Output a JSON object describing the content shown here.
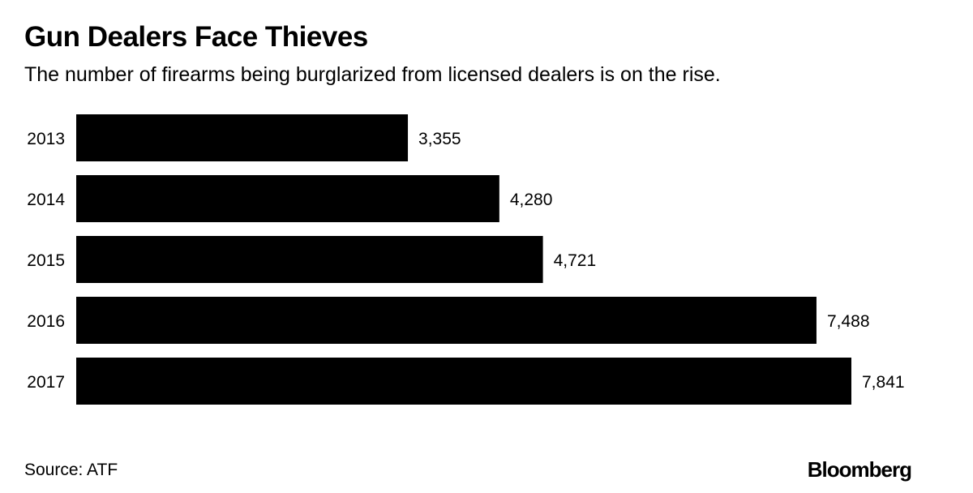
{
  "chart_data": {
    "type": "bar",
    "orientation": "horizontal",
    "title": "Gun Dealers Face Thieves",
    "subtitle": "The number of firearms being burglarized from licensed dealers is on the rise.",
    "categories": [
      "2013",
      "2014",
      "2015",
      "2016",
      "2017"
    ],
    "values": [
      3355,
      4280,
      4721,
      7488,
      7841
    ],
    "value_labels": [
      "3,355",
      "4,280",
      "4,721",
      "7,488",
      "7,841"
    ],
    "xlabel": "",
    "ylabel": "",
    "xlim": [
      0,
      7841
    ],
    "grid": false,
    "bar_color": "#000000"
  },
  "footer": {
    "source": "Source: ATF",
    "logo": "Bloomberg"
  }
}
